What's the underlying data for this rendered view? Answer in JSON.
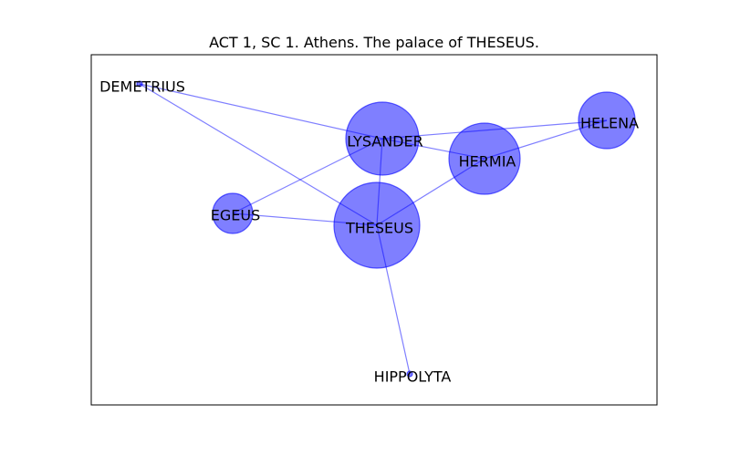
{
  "figure": {
    "title": "ACT 1, SC 1. Athens. The palace of THESEUS."
  },
  "style": {
    "node_fill": "#0000ff",
    "node_fill_opacity": 0.5,
    "edge_color": "#0000ff",
    "edge_opacity": 0.5,
    "frame_color": "#000000",
    "background": "#ffffff"
  },
  "graph": {
    "nodes": [
      {
        "id": "DEMETRIUS",
        "label": "DEMETRIUS"
      },
      {
        "id": "LYSANDER",
        "label": "LYSANDER"
      },
      {
        "id": "HERMIA",
        "label": "HERMIA"
      },
      {
        "id": "HELENA",
        "label": "HELENA"
      },
      {
        "id": "EGEUS",
        "label": "EGEUS"
      },
      {
        "id": "THESEUS",
        "label": "THESEUS"
      },
      {
        "id": "HIPPOLYTA",
        "label": "HIPPOLYTA"
      }
    ],
    "edges": [
      {
        "source": "DEMETRIUS",
        "target": "LYSANDER"
      },
      {
        "source": "DEMETRIUS",
        "target": "THESEUS"
      },
      {
        "source": "LYSANDER",
        "target": "HELENA"
      },
      {
        "source": "LYSANDER",
        "target": "HERMIA"
      },
      {
        "source": "LYSANDER",
        "target": "EGEUS"
      },
      {
        "source": "LYSANDER",
        "target": "THESEUS"
      },
      {
        "source": "HERMIA",
        "target": "HELENA"
      },
      {
        "source": "HERMIA",
        "target": "THESEUS"
      },
      {
        "source": "EGEUS",
        "target": "THESEUS"
      },
      {
        "source": "THESEUS",
        "target": "HIPPOLYTA"
      }
    ]
  }
}
